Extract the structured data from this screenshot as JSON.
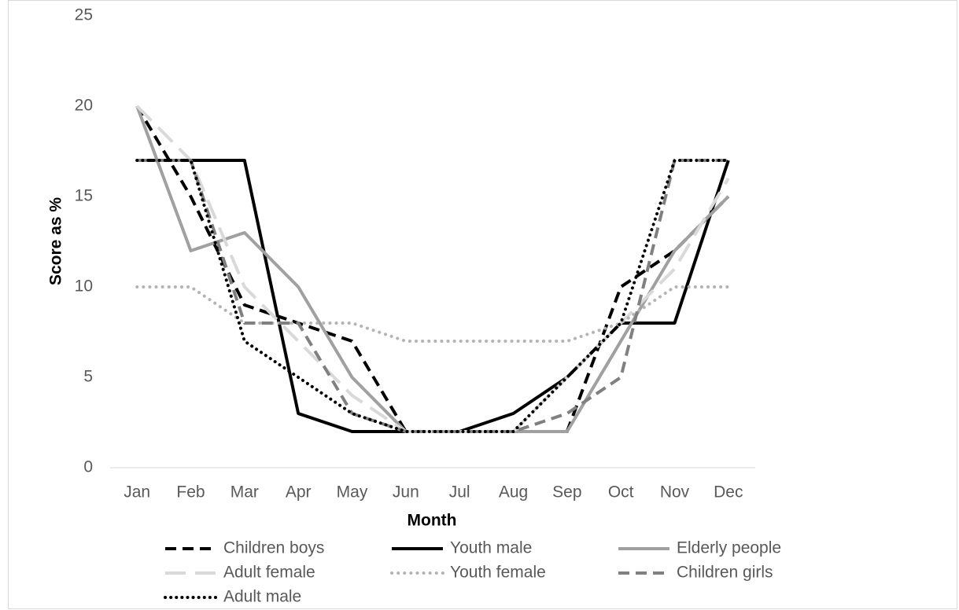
{
  "chart_data": {
    "type": "line",
    "x_label": "Month",
    "y_label": "Score as %",
    "categories": [
      "Jan",
      "Feb",
      "Mar",
      "Apr",
      "May",
      "Jun",
      "Jul",
      "Aug",
      "Sep",
      "Oct",
      "Nov",
      "Dec"
    ],
    "series": [
      {
        "name": "Children boys",
        "color": "#000000",
        "line_style": "dashed",
        "values": [
          20,
          15,
          9,
          8,
          7,
          2,
          2,
          2,
          2,
          10,
          12,
          15
        ]
      },
      {
        "name": "Youth male",
        "color": "#000000",
        "line_style": "solid",
        "values": [
          17,
          17,
          17,
          3,
          2,
          2,
          2,
          3,
          5,
          8,
          8,
          17
        ]
      },
      {
        "name": "Elderly people",
        "color": "#a0a0a0",
        "line_style": "solid",
        "values": [
          20,
          12,
          13,
          10,
          5,
          2,
          2,
          2,
          2,
          7,
          12,
          15
        ]
      },
      {
        "name": "Adult female",
        "color": "#d9d9d9",
        "line_style": "long-dash",
        "values": [
          20,
          17,
          10,
          7,
          4,
          2,
          2,
          2,
          5,
          8,
          11,
          16
        ]
      },
      {
        "name": "Youth female",
        "color": "#b4b4b4",
        "line_style": "round-dot",
        "values": [
          10,
          10,
          8,
          8,
          8,
          7,
          7,
          7,
          7,
          8,
          10,
          10
        ]
      },
      {
        "name": "Children girls",
        "color": "#808080",
        "line_style": "dashed",
        "values": [
          17,
          17,
          8,
          8,
          3,
          2,
          2,
          2,
          3,
          5,
          17,
          17
        ]
      },
      {
        "name": "Adult male",
        "color": "#000000",
        "line_style": "dotted",
        "values": [
          17,
          17,
          7,
          5,
          3,
          2,
          2,
          2,
          5,
          8,
          17,
          17
        ]
      }
    ],
    "ylim": [
      0,
      25
    ],
    "yticks": [
      0,
      5,
      10,
      15,
      20,
      25
    ],
    "grid": false,
    "legend": "bottom"
  }
}
